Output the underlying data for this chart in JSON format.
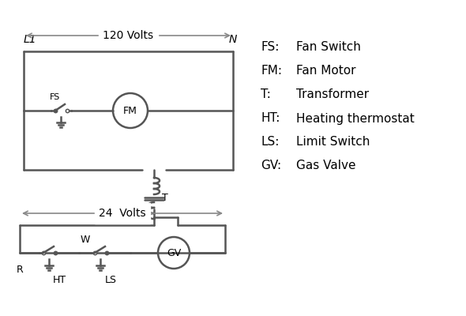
{
  "bg_color": "#ffffff",
  "line_color": "#555555",
  "text_color": "#000000",
  "lw": 1.8,
  "legend_items": [
    [
      "FS:",
      "Fan Switch"
    ],
    [
      "FM:",
      "Fan Motor"
    ],
    [
      "T:",
      "Transformer"
    ],
    [
      "HT:",
      "Heating thermostat"
    ],
    [
      "LS:",
      "Limit Switch"
    ],
    [
      "GV:",
      "Gas Valve"
    ]
  ],
  "L1_label": "L1",
  "N_label": "N",
  "volts120_label": "120 Volts",
  "volts24_label": "24  Volts",
  "T_label": "T",
  "R_label": "R",
  "W_label": "W",
  "HT_label": "HT",
  "LS_label": "LS",
  "FS_label": "FS",
  "FM_label": "FM",
  "GV_label": "GV"
}
